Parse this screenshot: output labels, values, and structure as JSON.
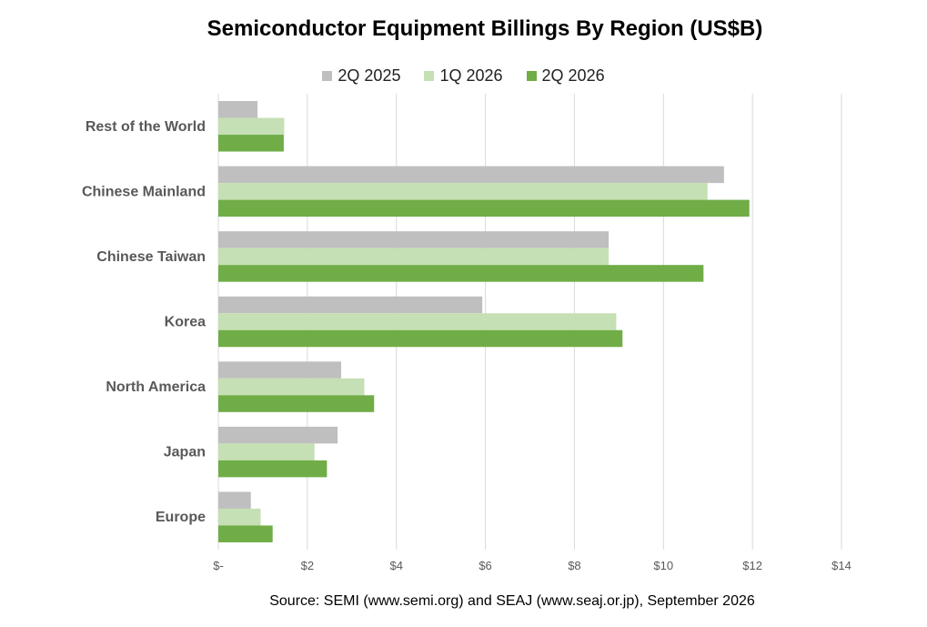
{
  "chart_data": {
    "type": "bar",
    "orientation": "horizontal",
    "title": "Semiconductor Equipment Billings By Region (US$B)",
    "categories": [
      "Rest of the World",
      "Chinese Mainland",
      "Chinese Taiwan",
      "Korea",
      "North America",
      "Japan",
      "Europe"
    ],
    "series": [
      {
        "name": "2Q 2025",
        "color": "#bfbfbf",
        "values": [
          0.88,
          11.36,
          8.77,
          5.93,
          2.76,
          2.68,
          0.73
        ]
      },
      {
        "name": "1Q 2026",
        "color": "#c5e0b4",
        "values": [
          1.48,
          10.99,
          8.77,
          8.94,
          3.28,
          2.16,
          0.95
        ]
      },
      {
        "name": "2Q 2026",
        "color": "#70ad47",
        "values": [
          1.47,
          11.93,
          10.9,
          9.08,
          3.5,
          2.44,
          1.22
        ]
      }
    ],
    "xlim": [
      0,
      14
    ],
    "x_ticks": [
      0,
      2,
      4,
      6,
      8,
      10,
      12,
      14
    ],
    "x_tick_labels": [
      "$-",
      "$2",
      "$4",
      "$6",
      "$8",
      "$10",
      "$12",
      "$14"
    ],
    "grid": true,
    "legend_position": "top"
  },
  "source": "Source: SEMI (www.semi.org) and SEAJ (www.seaj.or.jp), September 2026"
}
